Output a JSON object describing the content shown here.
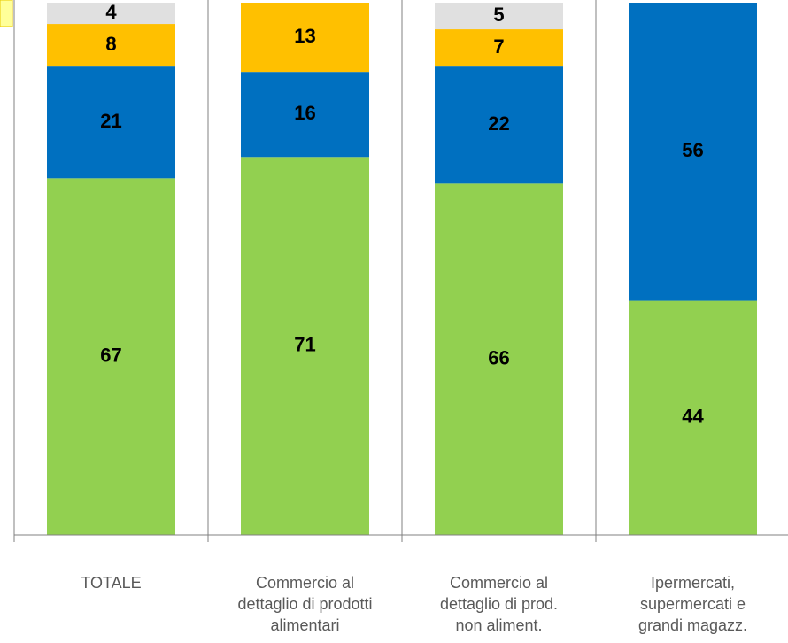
{
  "chart_data": {
    "type": "stacked_bar",
    "categories": [
      "TOTALE",
      "Commercio al dettaglio di prodotti alimentari",
      "Commercio al dettaglio di prod. non aliment.",
      "Ipermercati, supermercati e grandi magazz."
    ],
    "series": [
      {
        "color": "#92d050",
        "values": [
          67,
          71,
          66,
          44
        ]
      },
      {
        "color": "#0070c0",
        "values": [
          21,
          16,
          22,
          56
        ]
      },
      {
        "color": "#ffc000",
        "values": [
          8,
          13,
          7,
          null
        ]
      },
      {
        "color": "#e0e0e0",
        "values": [
          4,
          null,
          5,
          null
        ]
      }
    ],
    "ylim": [
      0,
      100
    ]
  }
}
